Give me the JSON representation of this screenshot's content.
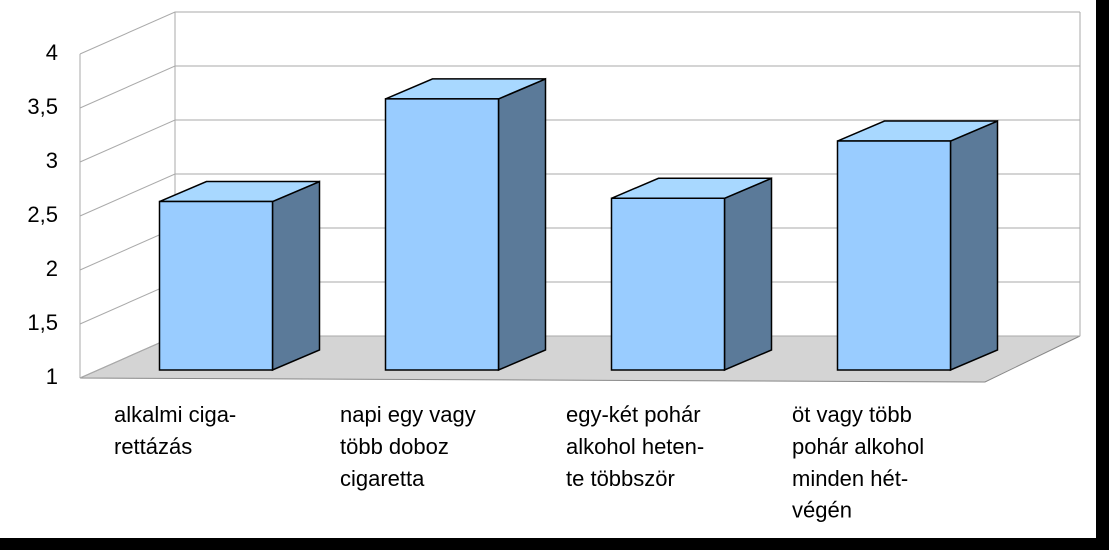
{
  "chart_data": {
    "type": "bar3d",
    "categories": [
      "alkalmi ciga-\nrettázás",
      "napi egy vagy\ntöbb doboz\ncigaretta",
      "egy-két pohár\nalkohol heten-\nte többször",
      "öt vagy több\npohár alkohol\nminden hét-\nvégén"
    ],
    "values": [
      2.56,
      3.51,
      2.59,
      3.12
    ],
    "color": "#99ccff",
    "ylim": [
      1,
      4
    ],
    "yticks": [
      1,
      {
        "value": 1.5,
        "label": "1,5"
      },
      2,
      {
        "value": 2.5,
        "label": "2,5"
      },
      3,
      {
        "value": 3.5,
        "label": "3,5"
      },
      4
    ],
    "grid": true
  }
}
